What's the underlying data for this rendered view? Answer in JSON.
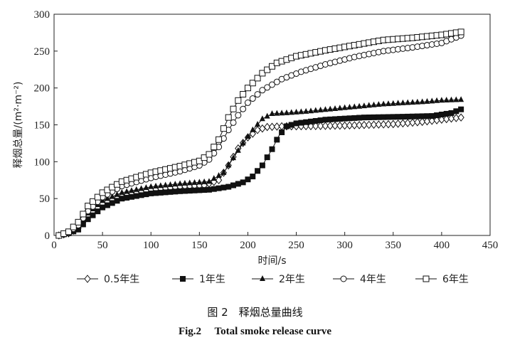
{
  "caption": {
    "cn": "图 2　释烟总量曲线",
    "en": "Fig.2　 Total smoke release curve"
  },
  "chart_data": {
    "type": "line",
    "xlabel": "时间/s",
    "ylabel": "释烟总量/(m²·m⁻²)",
    "xlim": [
      0,
      450
    ],
    "ylim": [
      0,
      300
    ],
    "xticks": [
      "0",
      "50",
      "100",
      "150",
      "200",
      "250",
      "300",
      "350",
      "400",
      "450"
    ],
    "yticks": [
      "0",
      "50",
      "100",
      "150",
      "200",
      "250",
      "300"
    ],
    "grid": false,
    "legend_position": "bottom",
    "series": [
      {
        "name": "0.5年生",
        "marker": "diamond-open",
        "points": [
          [
            5,
            0
          ],
          [
            15,
            3
          ],
          [
            25,
            10
          ],
          [
            35,
            27
          ],
          [
            50,
            43
          ],
          [
            70,
            53
          ],
          [
            100,
            62
          ],
          [
            130,
            66
          ],
          [
            155,
            68
          ],
          [
            170,
            75
          ],
          [
            180,
            95
          ],
          [
            190,
            118
          ],
          [
            200,
            133
          ],
          [
            210,
            143
          ],
          [
            220,
            147
          ],
          [
            235,
            148
          ],
          [
            250,
            148
          ],
          [
            300,
            149
          ],
          [
            350,
            151
          ],
          [
            380,
            154
          ],
          [
            400,
            157
          ],
          [
            420,
            160
          ]
        ]
      },
      {
        "name": "1年生",
        "marker": "square-filled",
        "points": [
          [
            5,
            0
          ],
          [
            15,
            3
          ],
          [
            25,
            8
          ],
          [
            35,
            22
          ],
          [
            50,
            38
          ],
          [
            70,
            50
          ],
          [
            100,
            57
          ],
          [
            130,
            60
          ],
          [
            160,
            62
          ],
          [
            180,
            66
          ],
          [
            195,
            72
          ],
          [
            205,
            80
          ],
          [
            215,
            95
          ],
          [
            225,
            117
          ],
          [
            232,
            135
          ],
          [
            240,
            148
          ],
          [
            250,
            152
          ],
          [
            280,
            157
          ],
          [
            320,
            160
          ],
          [
            360,
            161
          ],
          [
            390,
            162
          ],
          [
            410,
            166
          ],
          [
            420,
            171
          ]
        ]
      },
      {
        "name": "2年生",
        "marker": "triangle-filled",
        "points": [
          [
            5,
            0
          ],
          [
            15,
            4
          ],
          [
            25,
            12
          ],
          [
            35,
            30
          ],
          [
            50,
            47
          ],
          [
            70,
            58
          ],
          [
            100,
            66
          ],
          [
            130,
            70
          ],
          [
            160,
            73
          ],
          [
            175,
            85
          ],
          [
            185,
            105
          ],
          [
            195,
            125
          ],
          [
            205,
            143
          ],
          [
            215,
            158
          ],
          [
            225,
            165
          ],
          [
            240,
            166
          ],
          [
            260,
            168
          ],
          [
            300,
            173
          ],
          [
            340,
            178
          ],
          [
            380,
            181
          ],
          [
            400,
            183
          ],
          [
            420,
            184
          ]
        ]
      },
      {
        "name": "4年生",
        "marker": "circle-open",
        "points": [
          [
            5,
            0
          ],
          [
            15,
            4
          ],
          [
            25,
            14
          ],
          [
            35,
            33
          ],
          [
            50,
            52
          ],
          [
            70,
            67
          ],
          [
            100,
            78
          ],
          [
            130,
            87
          ],
          [
            150,
            95
          ],
          [
            160,
            103
          ],
          [
            170,
            120
          ],
          [
            180,
            143
          ],
          [
            190,
            163
          ],
          [
            200,
            180
          ],
          [
            215,
            197
          ],
          [
            235,
            212
          ],
          [
            255,
            222
          ],
          [
            280,
            232
          ],
          [
            310,
            242
          ],
          [
            340,
            250
          ],
          [
            370,
            255
          ],
          [
            400,
            261
          ],
          [
            420,
            271
          ]
        ]
      },
      {
        "name": "6年生",
        "marker": "square-open",
        "points": [
          [
            5,
            0
          ],
          [
            15,
            5
          ],
          [
            25,
            18
          ],
          [
            35,
            40
          ],
          [
            50,
            58
          ],
          [
            70,
            73
          ],
          [
            100,
            85
          ],
          [
            130,
            94
          ],
          [
            150,
            101
          ],
          [
            160,
            110
          ],
          [
            170,
            130
          ],
          [
            180,
            160
          ],
          [
            190,
            183
          ],
          [
            200,
            200
          ],
          [
            215,
            220
          ],
          [
            230,
            234
          ],
          [
            250,
            243
          ],
          [
            280,
            251
          ],
          [
            310,
            258
          ],
          [
            340,
            265
          ],
          [
            370,
            268
          ],
          [
            400,
            272
          ],
          [
            420,
            276
          ]
        ]
      }
    ]
  }
}
